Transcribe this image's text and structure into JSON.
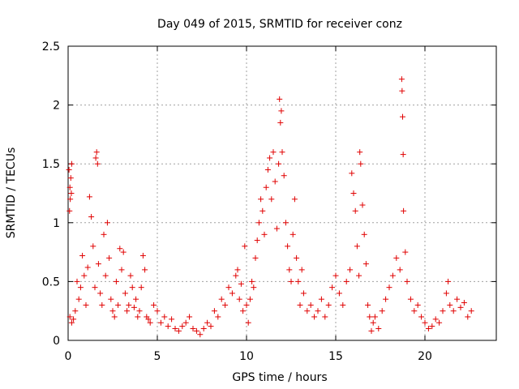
{
  "chart_data": {
    "type": "scatter",
    "title": "Day 049 of 2015, SRMTID for receiver conz",
    "xlabel": "GPS time / hours",
    "ylabel": "SRMTID / TECUs",
    "xlim": [
      0,
      24
    ],
    "ylim": [
      0,
      2.5
    ],
    "xticks": [
      0,
      5,
      10,
      15,
      20
    ],
    "xtick_labels": [
      "0",
      "5",
      "10",
      "15",
      "20"
    ],
    "yticks": [
      0,
      0.5,
      1,
      1.5,
      2,
      2.5
    ],
    "ytick_labels": [
      "0",
      "0.5",
      "1",
      "1.5",
      "2",
      "2.5"
    ],
    "grid": true,
    "marker": "+",
    "colors": {
      "series": "#e00000",
      "grid": "#a0a0a0",
      "axis": "#000000"
    },
    "series": [
      {
        "name": "SRMTID",
        "points": [
          [
            0.05,
            1.45
          ],
          [
            0.1,
            1.3
          ],
          [
            0.12,
            1.2
          ],
          [
            0.15,
            1.38
          ],
          [
            0.2,
            1.5
          ],
          [
            0.08,
            1.1
          ],
          [
            0.18,
            1.25
          ],
          [
            0.1,
            0.2
          ],
          [
            0.2,
            0.15
          ],
          [
            0.3,
            0.18
          ],
          [
            0.4,
            0.25
          ],
          [
            0.5,
            0.5
          ],
          [
            0.6,
            0.35
          ],
          [
            0.7,
            0.45
          ],
          [
            0.8,
            0.72
          ],
          [
            0.9,
            0.55
          ],
          [
            1.0,
            0.3
          ],
          [
            1.1,
            0.62
          ],
          [
            1.2,
            1.22
          ],
          [
            1.3,
            1.05
          ],
          [
            1.4,
            0.8
          ],
          [
            1.5,
            0.45
          ],
          [
            1.55,
            1.55
          ],
          [
            1.6,
            1.6
          ],
          [
            1.65,
            1.5
          ],
          [
            1.7,
            0.65
          ],
          [
            1.8,
            0.4
          ],
          [
            1.9,
            0.3
          ],
          [
            2.0,
            0.9
          ],
          [
            2.1,
            0.55
          ],
          [
            2.2,
            1.0
          ],
          [
            2.3,
            0.7
          ],
          [
            2.4,
            0.35
          ],
          [
            2.5,
            0.25
          ],
          [
            2.6,
            0.2
          ],
          [
            2.7,
            0.5
          ],
          [
            2.8,
            0.3
          ],
          [
            2.9,
            0.78
          ],
          [
            3.0,
            0.6
          ],
          [
            3.1,
            0.75
          ],
          [
            3.2,
            0.4
          ],
          [
            3.3,
            0.25
          ],
          [
            3.4,
            0.3
          ],
          [
            3.5,
            0.55
          ],
          [
            3.6,
            0.45
          ],
          [
            3.7,
            0.28
          ],
          [
            3.8,
            0.35
          ],
          [
            3.9,
            0.2
          ],
          [
            4.0,
            0.25
          ],
          [
            4.1,
            0.45
          ],
          [
            4.2,
            0.72
          ],
          [
            4.3,
            0.6
          ],
          [
            4.4,
            0.2
          ],
          [
            4.5,
            0.18
          ],
          [
            4.6,
            0.15
          ],
          [
            4.8,
            0.3
          ],
          [
            5.0,
            0.25
          ],
          [
            5.2,
            0.15
          ],
          [
            5.4,
            0.2
          ],
          [
            5.6,
            0.12
          ],
          [
            5.8,
            0.18
          ],
          [
            6.0,
            0.1
          ],
          [
            6.2,
            0.08
          ],
          [
            6.4,
            0.12
          ],
          [
            6.6,
            0.15
          ],
          [
            6.8,
            0.2
          ],
          [
            7.0,
            0.1
          ],
          [
            7.2,
            0.08
          ],
          [
            7.4,
            0.05
          ],
          [
            7.6,
            0.1
          ],
          [
            7.8,
            0.15
          ],
          [
            8.0,
            0.12
          ],
          [
            8.2,
            0.25
          ],
          [
            8.4,
            0.2
          ],
          [
            8.6,
            0.35
          ],
          [
            8.8,
            0.3
          ],
          [
            9.0,
            0.45
          ],
          [
            9.2,
            0.4
          ],
          [
            9.4,
            0.55
          ],
          [
            9.5,
            0.6
          ],
          [
            9.6,
            0.35
          ],
          [
            9.7,
            0.48
          ],
          [
            9.8,
            0.25
          ],
          [
            9.9,
            0.8
          ],
          [
            10.0,
            0.3
          ],
          [
            10.1,
            0.15
          ],
          [
            10.2,
            0.35
          ],
          [
            10.3,
            0.5
          ],
          [
            10.4,
            0.45
          ],
          [
            10.5,
            0.7
          ],
          [
            10.6,
            0.85
          ],
          [
            10.7,
            1.0
          ],
          [
            10.8,
            1.2
          ],
          [
            10.9,
            1.1
          ],
          [
            11.0,
            0.9
          ],
          [
            11.1,
            1.3
          ],
          [
            11.2,
            1.45
          ],
          [
            11.3,
            1.55
          ],
          [
            11.4,
            1.2
          ],
          [
            11.5,
            1.6
          ],
          [
            11.6,
            1.35
          ],
          [
            11.7,
            0.95
          ],
          [
            11.8,
            1.5
          ],
          [
            11.85,
            2.05
          ],
          [
            11.9,
            1.85
          ],
          [
            11.95,
            1.95
          ],
          [
            12.0,
            1.6
          ],
          [
            12.1,
            1.4
          ],
          [
            12.2,
            1.0
          ],
          [
            12.3,
            0.8
          ],
          [
            12.4,
            0.6
          ],
          [
            12.5,
            0.5
          ],
          [
            12.6,
            0.9
          ],
          [
            12.7,
            1.2
          ],
          [
            12.8,
            0.7
          ],
          [
            12.9,
            0.5
          ],
          [
            13.0,
            0.3
          ],
          [
            13.1,
            0.6
          ],
          [
            13.2,
            0.4
          ],
          [
            13.4,
            0.25
          ],
          [
            13.6,
            0.3
          ],
          [
            13.8,
            0.2
          ],
          [
            14.0,
            0.25
          ],
          [
            14.2,
            0.35
          ],
          [
            14.4,
            0.2
          ],
          [
            14.6,
            0.3
          ],
          [
            14.8,
            0.45
          ],
          [
            15.0,
            0.55
          ],
          [
            15.2,
            0.4
          ],
          [
            15.4,
            0.3
          ],
          [
            15.6,
            0.5
          ],
          [
            15.8,
            0.6
          ],
          [
            15.9,
            1.42
          ],
          [
            16.0,
            1.25
          ],
          [
            16.1,
            1.1
          ],
          [
            16.2,
            0.8
          ],
          [
            16.3,
            0.55
          ],
          [
            16.35,
            1.6
          ],
          [
            16.4,
            1.5
          ],
          [
            16.5,
            1.15
          ],
          [
            16.6,
            0.9
          ],
          [
            16.7,
            0.65
          ],
          [
            16.8,
            0.3
          ],
          [
            16.9,
            0.2
          ],
          [
            17.0,
            0.08
          ],
          [
            17.1,
            0.15
          ],
          [
            17.2,
            0.2
          ],
          [
            17.4,
            0.1
          ],
          [
            17.6,
            0.25
          ],
          [
            17.8,
            0.35
          ],
          [
            18.0,
            0.45
          ],
          [
            18.2,
            0.55
          ],
          [
            18.4,
            0.7
          ],
          [
            18.6,
            0.6
          ],
          [
            18.7,
            2.22
          ],
          [
            18.72,
            2.12
          ],
          [
            18.75,
            1.9
          ],
          [
            18.78,
            1.58
          ],
          [
            18.8,
            1.1
          ],
          [
            18.9,
            0.75
          ],
          [
            19.0,
            0.5
          ],
          [
            19.2,
            0.35
          ],
          [
            19.4,
            0.25
          ],
          [
            19.6,
            0.3
          ],
          [
            19.8,
            0.2
          ],
          [
            20.0,
            0.15
          ],
          [
            20.2,
            0.1
          ],
          [
            20.4,
            0.12
          ],
          [
            20.6,
            0.18
          ],
          [
            20.8,
            0.15
          ],
          [
            21.0,
            0.25
          ],
          [
            21.2,
            0.4
          ],
          [
            21.3,
            0.5
          ],
          [
            21.4,
            0.3
          ],
          [
            21.6,
            0.25
          ],
          [
            21.8,
            0.35
          ],
          [
            22.0,
            0.28
          ],
          [
            22.2,
            0.32
          ],
          [
            22.4,
            0.2
          ],
          [
            22.6,
            0.25
          ]
        ]
      }
    ]
  }
}
